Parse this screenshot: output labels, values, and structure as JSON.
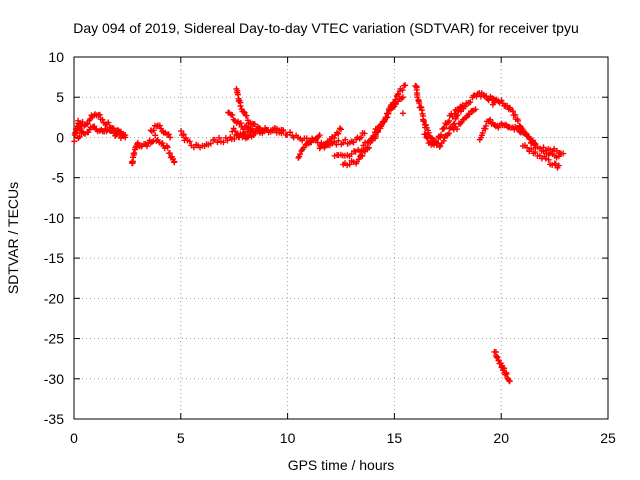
{
  "chart_data": {
    "type": "scatter",
    "title": "Day 094 of 2019, Sidereal Day-to-day VTEC variation (SDTVAR) for receiver tpyu",
    "xlabel": "GPS time / hours",
    "ylabel": "SDTVAR / TECUs",
    "xlim": [
      0,
      25
    ],
    "ylim": [
      -35,
      10
    ],
    "xticks": [
      0,
      5,
      10,
      15,
      20,
      25
    ],
    "yticks": [
      10,
      5,
      0,
      -5,
      -10,
      -15,
      -20,
      -25,
      -30,
      -35
    ],
    "grid": true,
    "marker": "+",
    "series": [
      {
        "name": "SDTVAR",
        "color": "#ff0000",
        "segments": [
          [
            [
              0.0,
              0.5
            ],
            [
              0.2,
              1.0
            ],
            [
              0.4,
              1.8
            ],
            [
              0.6,
              1.5
            ],
            [
              0.8,
              2.5
            ],
            [
              1.0,
              3.0
            ],
            [
              1.2,
              2.6
            ],
            [
              1.4,
              2.0
            ],
            [
              1.6,
              1.6
            ],
            [
              1.8,
              1.2
            ],
            [
              2.0,
              0.9
            ],
            [
              2.2,
              0.6
            ],
            [
              2.4,
              0.3
            ]
          ],
          [
            [
              0.2,
              0.0
            ],
            [
              0.4,
              0.5
            ],
            [
              0.6,
              0.8
            ],
            [
              0.8,
              1.0
            ],
            [
              1.0,
              1.2
            ],
            [
              1.2,
              1.0
            ],
            [
              1.4,
              0.9
            ],
            [
              1.6,
              0.7
            ],
            [
              1.8,
              0.5
            ],
            [
              2.0,
              0.3
            ],
            [
              2.2,
              0.2
            ],
            [
              2.4,
              0.0
            ]
          ],
          [
            [
              0.0,
              -0.2
            ],
            [
              0.2,
              2.0
            ],
            [
              0.3,
              1.0
            ]
          ],
          [
            [
              2.7,
              -3.5
            ],
            [
              2.8,
              -2.0
            ],
            [
              2.9,
              -1.0
            ],
            [
              3.0,
              -0.8
            ],
            [
              3.2,
              -1.2
            ],
            [
              3.4,
              -0.8
            ],
            [
              3.6,
              -0.5
            ],
            [
              3.8,
              0.0
            ],
            [
              4.0,
              -0.6
            ],
            [
              4.2,
              -1.0
            ],
            [
              4.4,
              -1.5
            ],
            [
              4.6,
              -2.5
            ],
            [
              4.7,
              -3.0
            ]
          ],
          [
            [
              3.6,
              1.0
            ],
            [
              3.8,
              1.2
            ],
            [
              4.0,
              1.3
            ],
            [
              4.2,
              0.6
            ],
            [
              4.5,
              0.0
            ]
          ],
          [
            [
              5.0,
              0.5
            ],
            [
              5.3,
              -0.5
            ],
            [
              5.6,
              -1.0
            ],
            [
              5.9,
              -1.2
            ],
            [
              6.2,
              -0.8
            ],
            [
              6.5,
              -0.5
            ],
            [
              6.8,
              -0.3
            ],
            [
              7.1,
              -0.3
            ],
            [
              7.4,
              0.0
            ],
            [
              7.7,
              0.3
            ],
            [
              8.0,
              0.5
            ],
            [
              8.4,
              0.6
            ],
            [
              8.8,
              0.8
            ],
            [
              9.2,
              0.9
            ],
            [
              9.6,
              0.8
            ],
            [
              10.0,
              0.5
            ],
            [
              10.4,
              0.2
            ],
            [
              10.8,
              -0.2
            ],
            [
              11.2,
              -0.6
            ],
            [
              11.6,
              -0.8
            ],
            [
              12.0,
              -0.7
            ],
            [
              12.4,
              -0.6
            ],
            [
              12.8,
              -0.5
            ],
            [
              13.2,
              -0.4
            ],
            [
              13.6,
              0.5
            ]
          ],
          [
            [
              7.2,
              3.0
            ],
            [
              7.4,
              2.5
            ],
            [
              7.6,
              2.0
            ],
            [
              7.8,
              1.6
            ],
            [
              8.0,
              1.2
            ],
            [
              8.2,
              1.0
            ],
            [
              8.4,
              0.9
            ],
            [
              8.8,
              0.8
            ]
          ],
          [
            [
              7.6,
              6.0
            ],
            [
              7.7,
              5.0
            ],
            [
              7.8,
              4.0
            ],
            [
              8.0,
              3.0
            ],
            [
              8.2,
              2.0
            ],
            [
              8.4,
              1.5
            ],
            [
              8.6,
              1.2
            ],
            [
              8.8,
              1.0
            ],
            [
              9.0,
              0.9
            ],
            [
              9.4,
              0.9
            ],
            [
              9.8,
              0.8
            ]
          ],
          [
            [
              7.4,
              1.0
            ],
            [
              7.6,
              0.5
            ],
            [
              7.8,
              0.2
            ],
            [
              8.0,
              0.0
            ],
            [
              8.2,
              0.1
            ],
            [
              8.4,
              0.3
            ]
          ],
          [
            [
              10.5,
              -2.5
            ],
            [
              10.7,
              -1.5
            ],
            [
              10.9,
              -1.0
            ],
            [
              11.1,
              -0.5
            ],
            [
              11.3,
              0.0
            ],
            [
              11.5,
              0.3
            ]
          ],
          [
            [
              11.5,
              -1.5
            ],
            [
              11.7,
              -1.0
            ],
            [
              11.9,
              -0.5
            ],
            [
              12.1,
              0.0
            ],
            [
              12.3,
              0.5
            ],
            [
              12.5,
              1.0
            ]
          ],
          [
            [
              12.6,
              -3.5
            ],
            [
              12.9,
              -3.3
            ],
            [
              13.2,
              -3.0
            ],
            [
              13.5,
              -2.0
            ],
            [
              13.8,
              -1.0
            ],
            [
              14.1,
              0.2
            ],
            [
              14.4,
              1.5
            ],
            [
              14.7,
              3.0
            ],
            [
              15.0,
              4.5
            ],
            [
              15.3,
              6.0
            ],
            [
              15.5,
              6.5
            ]
          ],
          [
            [
              12.2,
              -2.5
            ],
            [
              12.6,
              -2.2
            ],
            [
              13.0,
              -2.0
            ],
            [
              13.4,
              -1.5
            ],
            [
              13.8,
              -0.5
            ],
            [
              14.2,
              1.0
            ],
            [
              14.6,
              2.5
            ],
            [
              15.0,
              4.0
            ],
            [
              15.4,
              5.0
            ]
          ],
          [
            [
              15.4,
              3.0
            ]
          ],
          [
            [
              16.0,
              6.5
            ],
            [
              16.1,
              5.0
            ],
            [
              16.2,
              4.0
            ],
            [
              16.3,
              3.0
            ],
            [
              16.5,
              1.0
            ],
            [
              16.7,
              0.0
            ],
            [
              16.9,
              -0.5
            ],
            [
              17.1,
              -1.0
            ],
            [
              17.3,
              -0.5
            ],
            [
              17.5,
              0.5
            ],
            [
              17.7,
              1.5
            ],
            [
              17.9,
              2.5
            ],
            [
              18.1,
              3.5
            ],
            [
              18.3,
              4.0
            ],
            [
              18.5,
              4.5
            ],
            [
              18.7,
              5.0
            ],
            [
              18.9,
              5.5
            ],
            [
              19.1,
              5.3
            ],
            [
              19.3,
              5.0
            ],
            [
              19.5,
              4.8
            ],
            [
              19.7,
              4.5
            ]
          ],
          [
            [
              16.4,
              0.5
            ],
            [
              16.6,
              -0.5
            ],
            [
              16.8,
              -1.0
            ],
            [
              17.0,
              -0.5
            ],
            [
              17.2,
              0.5
            ],
            [
              17.4,
              1.5
            ],
            [
              17.6,
              2.5
            ],
            [
              17.8,
              3.0
            ],
            [
              18.0,
              3.5
            ],
            [
              18.2,
              4.0
            ]
          ],
          [
            [
              17.8,
              1.0
            ],
            [
              18.0,
              1.5
            ],
            [
              18.2,
              2.0
            ],
            [
              18.4,
              2.5
            ],
            [
              18.6,
              3.0
            ],
            [
              18.8,
              3.5
            ]
          ],
          [
            [
              19.0,
              0.0
            ],
            [
              19.2,
              1.0
            ],
            [
              19.4,
              2.0
            ],
            [
              19.6,
              1.8
            ],
            [
              19.8,
              1.5
            ],
            [
              20.0,
              1.5
            ],
            [
              20.2,
              1.5
            ],
            [
              20.4,
              1.3
            ],
            [
              20.6,
              1.2
            ],
            [
              20.8,
              1.0
            ],
            [
              21.0,
              0.5
            ],
            [
              21.3,
              0.0
            ],
            [
              21.6,
              -1.0
            ],
            [
              21.9,
              -1.5
            ],
            [
              22.2,
              -2.0
            ],
            [
              22.5,
              -2.5
            ],
            [
              22.8,
              -2.0
            ]
          ],
          [
            [
              19.6,
              4.0
            ],
            [
              19.8,
              4.5
            ],
            [
              20.0,
              4.3
            ],
            [
              20.2,
              4.0
            ],
            [
              20.4,
              3.5
            ],
            [
              20.6,
              3.0
            ],
            [
              20.8,
              2.0
            ],
            [
              21.0,
              1.0
            ],
            [
              21.2,
              0.0
            ],
            [
              21.4,
              -0.5
            ],
            [
              21.6,
              -0.8
            ]
          ],
          [
            [
              21.0,
              -1.0
            ],
            [
              21.3,
              -1.5
            ],
            [
              21.6,
              -2.0
            ],
            [
              21.9,
              -2.5
            ],
            [
              22.2,
              -3.0
            ],
            [
              22.5,
              -3.5
            ],
            [
              22.7,
              -3.5
            ]
          ],
          [
            [
              22.0,
              -1.2
            ],
            [
              22.3,
              -1.5
            ],
            [
              22.6,
              -1.8
            ],
            [
              22.9,
              -2.0
            ]
          ],
          [
            [
              19.7,
              -26.8
            ],
            [
              19.8,
              -27.3
            ],
            [
              19.9,
              -27.8
            ],
            [
              20.0,
              -28.3
            ],
            [
              20.1,
              -28.8
            ],
            [
              20.2,
              -29.3
            ],
            [
              20.3,
              -29.8
            ],
            [
              20.4,
              -30.3
            ]
          ]
        ]
      }
    ]
  }
}
